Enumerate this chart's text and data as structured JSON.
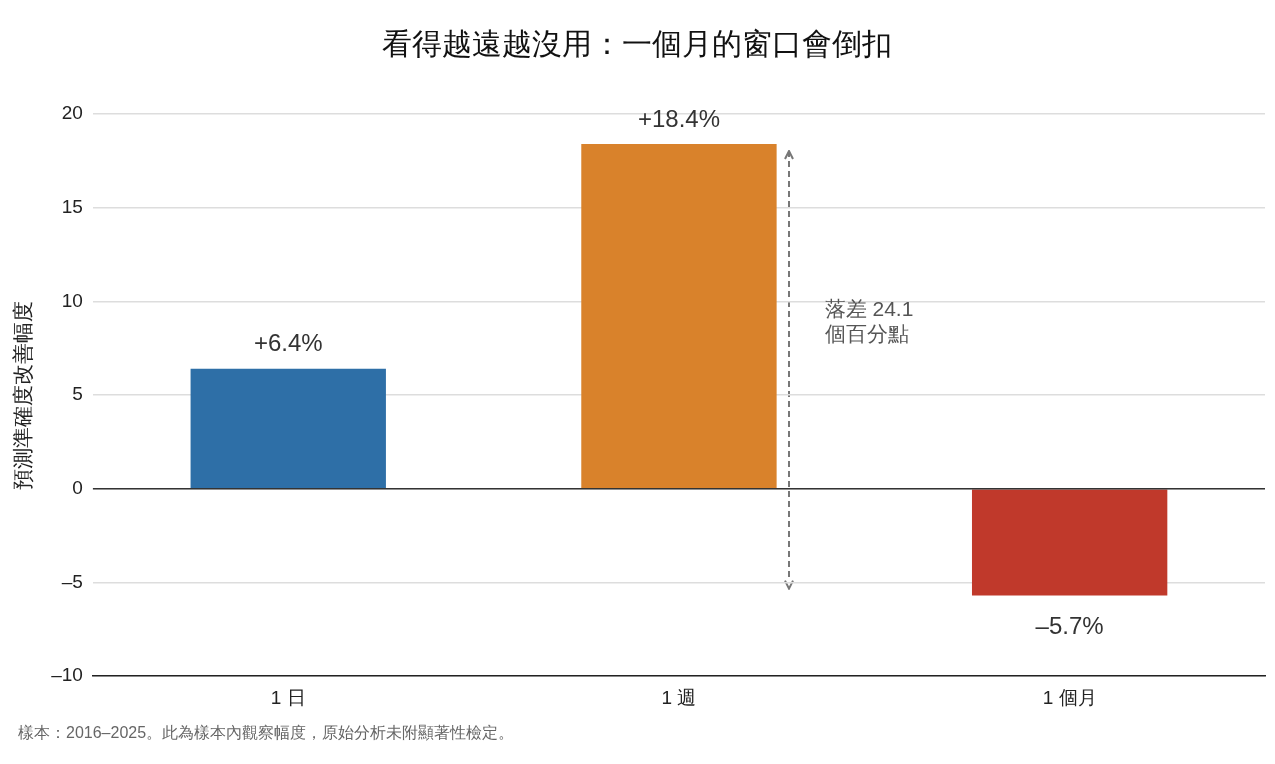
{
  "chart_data": {
    "type": "bar",
    "title": "看得越遠越沒用：一個月的窗口會倒扣",
    "ylabel": "預測準確度改善幅度",
    "categories": [
      "1 日",
      "1 週",
      "1 個月"
    ],
    "values": [
      6.4,
      18.4,
      -5.7
    ],
    "colors": [
      "#2e6fa7",
      "#d9822b",
      "#c0392b"
    ],
    "value_labels": [
      "+6.4%",
      "+18.4%",
      "–5.7%"
    ],
    "ylim": [
      -10,
      20
    ],
    "yticks": [
      {
        "value": -10,
        "label": "–10"
      },
      {
        "value": -5,
        "label": "–5"
      },
      0,
      5,
      10,
      15,
      20
    ],
    "grid": "y",
    "legend": false,
    "ref_lines": [
      {
        "axis": "y",
        "value": 0,
        "color": "#333333"
      }
    ],
    "annotations": [
      "落差 24.1\n個百分點",
      "樣本：2016–2025。此為樣本內觀察幅度，原始分析未附顯著性檢定。"
    ]
  }
}
